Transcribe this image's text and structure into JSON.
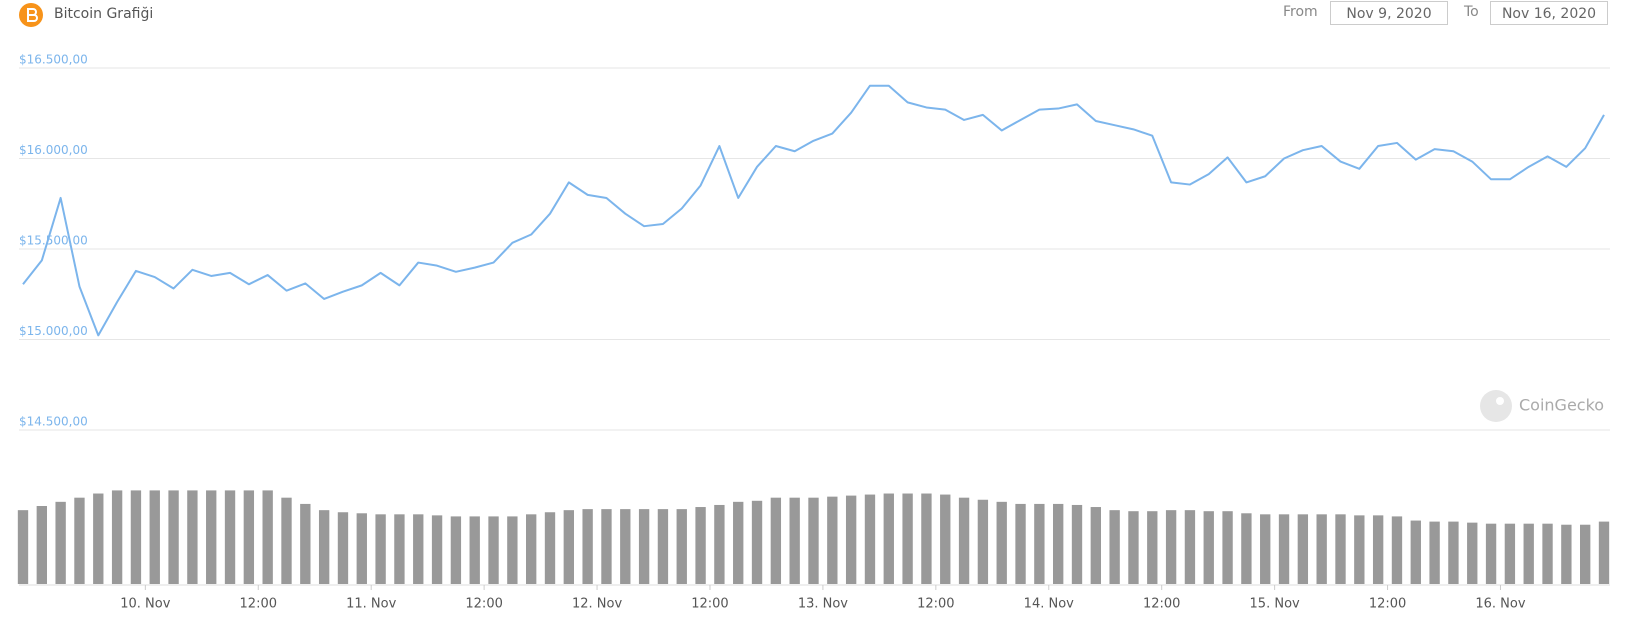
{
  "header": {
    "title": "Bitcoin Grafiği",
    "from_label": "From",
    "from": "Nov 9, 2020",
    "to_label": "To",
    "to": "Nov 16, 2020",
    "watermark": "CoinGecko"
  },
  "chart_data": {
    "type": "line",
    "x": [
      "2020-11-09T11:00",
      "2020-11-09T13:00",
      "2020-11-09T15:00",
      "2020-11-09T17:00",
      "2020-11-09T19:00",
      "2020-11-09T21:00",
      "2020-11-09T23:00",
      "2020-11-10T01:00",
      "2020-11-10T03:00",
      "2020-11-10T05:00",
      "2020-11-10T07:00",
      "2020-11-10T09:00",
      "2020-11-10T11:00",
      "2020-11-10T13:00",
      "2020-11-10T15:00",
      "2020-11-10T17:00",
      "2020-11-10T19:00",
      "2020-11-10T21:00",
      "2020-11-10T23:00",
      "2020-11-11T01:00",
      "2020-11-11T03:00",
      "2020-11-11T05:00",
      "2020-11-11T07:00",
      "2020-11-11T09:00",
      "2020-11-11T11:00",
      "2020-11-11T13:00",
      "2020-11-11T15:00",
      "2020-11-11T17:00",
      "2020-11-11T19:00",
      "2020-11-11T21:00",
      "2020-11-11T23:00",
      "2020-11-12T01:00",
      "2020-11-12T03:00",
      "2020-11-12T05:00",
      "2020-11-12T07:00",
      "2020-11-12T09:00",
      "2020-11-12T11:00",
      "2020-11-12T13:00",
      "2020-11-12T15:00",
      "2020-11-12T17:00",
      "2020-11-12T19:00",
      "2020-11-12T21:00",
      "2020-11-12T23:00",
      "2020-11-13T01:00",
      "2020-11-13T03:00",
      "2020-11-13T05:00",
      "2020-11-13T07:00",
      "2020-11-13T09:00",
      "2020-11-13T11:00",
      "2020-11-13T13:00",
      "2020-11-13T15:00",
      "2020-11-13T17:00",
      "2020-11-13T19:00",
      "2020-11-13T21:00",
      "2020-11-13T23:00",
      "2020-11-14T01:00",
      "2020-11-14T03:00",
      "2020-11-14T05:00",
      "2020-11-14T07:00",
      "2020-11-14T09:00",
      "2020-11-14T11:00",
      "2020-11-14T13:00",
      "2020-11-14T15:00",
      "2020-11-14T17:00",
      "2020-11-14T19:00",
      "2020-11-14T21:00",
      "2020-11-14T23:00",
      "2020-11-15T01:00",
      "2020-11-15T03:00",
      "2020-11-15T05:00",
      "2020-11-15T07:00",
      "2020-11-15T09:00",
      "2020-11-15T11:00",
      "2020-11-15T13:00",
      "2020-11-15T15:00",
      "2020-11-15T17:00",
      "2020-11-15T19:00",
      "2020-11-15T21:00",
      "2020-11-15T23:00",
      "2020-11-16T01:00",
      "2020-11-16T03:00",
      "2020-11-16T05:00",
      "2020-11-16T07:00",
      "2020-11-16T09:00",
      "2020-11-16T11:00"
    ],
    "xlim": [
      "2020-11-09T11:00",
      "2020-11-16T11:00"
    ],
    "xticks": [
      {
        "value": "2020-11-10T00:00",
        "label": "10. Nov"
      },
      {
        "value": "2020-11-10T12:00",
        "label": "12:00"
      },
      {
        "value": "2020-11-11T00:00",
        "label": "11. Nov"
      },
      {
        "value": "2020-11-11T12:00",
        "label": "12:00"
      },
      {
        "value": "2020-11-12T00:00",
        "label": "12. Nov"
      },
      {
        "value": "2020-11-12T12:00",
        "label": "12:00"
      },
      {
        "value": "2020-11-13T00:00",
        "label": "13. Nov"
      },
      {
        "value": "2020-11-13T12:00",
        "label": "12:00"
      },
      {
        "value": "2020-11-14T00:00",
        "label": "14. Nov"
      },
      {
        "value": "2020-11-14T12:00",
        "label": "12:00"
      },
      {
        "value": "2020-11-15T00:00",
        "label": "15. Nov"
      },
      {
        "value": "2020-11-15T12:00",
        "label": "12:00"
      },
      {
        "value": "2020-11-16T00:00",
        "label": "16. Nov"
      }
    ],
    "ylim": [
      14500,
      16500
    ],
    "yticks": [
      {
        "value": 14500,
        "label": "$14.500,00"
      },
      {
        "value": 15000,
        "label": "$15.000,00"
      },
      {
        "value": 15500,
        "label": "$15.500,00"
      },
      {
        "value": 16000,
        "label": "$16.000,00"
      },
      {
        "value": 16500,
        "label": "$16.500,00"
      }
    ],
    "y2lim": [
      0,
      100
    ],
    "grid": true,
    "series": [
      {
        "color": "#7cb5ec",
        "values": [
          15305,
          15437,
          15782,
          15293,
          15023,
          15207,
          15379,
          15345,
          15282,
          15385,
          15351,
          15368,
          15305,
          15356,
          15270,
          15310,
          15224,
          15264,
          15299,
          15368,
          15299,
          15425,
          15408,
          15374,
          15397,
          15425,
          15534,
          15580,
          15695,
          15868,
          15799,
          15782,
          15695,
          15626,
          15638,
          15724,
          15851,
          16069,
          15782,
          15954,
          16069,
          16040,
          16098,
          16138,
          16253,
          16402,
          16402,
          16310,
          16282,
          16270,
          16213,
          16241,
          16155,
          16213,
          16270,
          16276,
          16299,
          16207,
          16184,
          16161,
          16126,
          15868,
          15856,
          15914,
          16006,
          15868,
          15902,
          16000,
          16046,
          16069,
          15983,
          15943,
          16069,
          16086,
          15994,
          16052,
          16040,
          15983,
          15885,
          15885,
          15954,
          16012,
          15954,
          16057,
          16241
        ]
      },
      {
        "type": "bar",
        "axis": "y2",
        "color": "#999999",
        "values": [
          71,
          75,
          79,
          83,
          87,
          90,
          90,
          90,
          90,
          90,
          90,
          90,
          90,
          90,
          83,
          77,
          71,
          69,
          68,
          67,
          67,
          67,
          66,
          65,
          65,
          65,
          65,
          67,
          69,
          71,
          72,
          72,
          72,
          72,
          72,
          72,
          74,
          76,
          79,
          80,
          83,
          83,
          83,
          84,
          85,
          86,
          87,
          87,
          87,
          86,
          83,
          81,
          79,
          77,
          77,
          77,
          76,
          74,
          71,
          70,
          70,
          71,
          71,
          70,
          70,
          68,
          67,
          67,
          67,
          67,
          67,
          66,
          66,
          65,
          61,
          60,
          60,
          59,
          58,
          58,
          58,
          58,
          57,
          57,
          60
        ]
      }
    ]
  }
}
